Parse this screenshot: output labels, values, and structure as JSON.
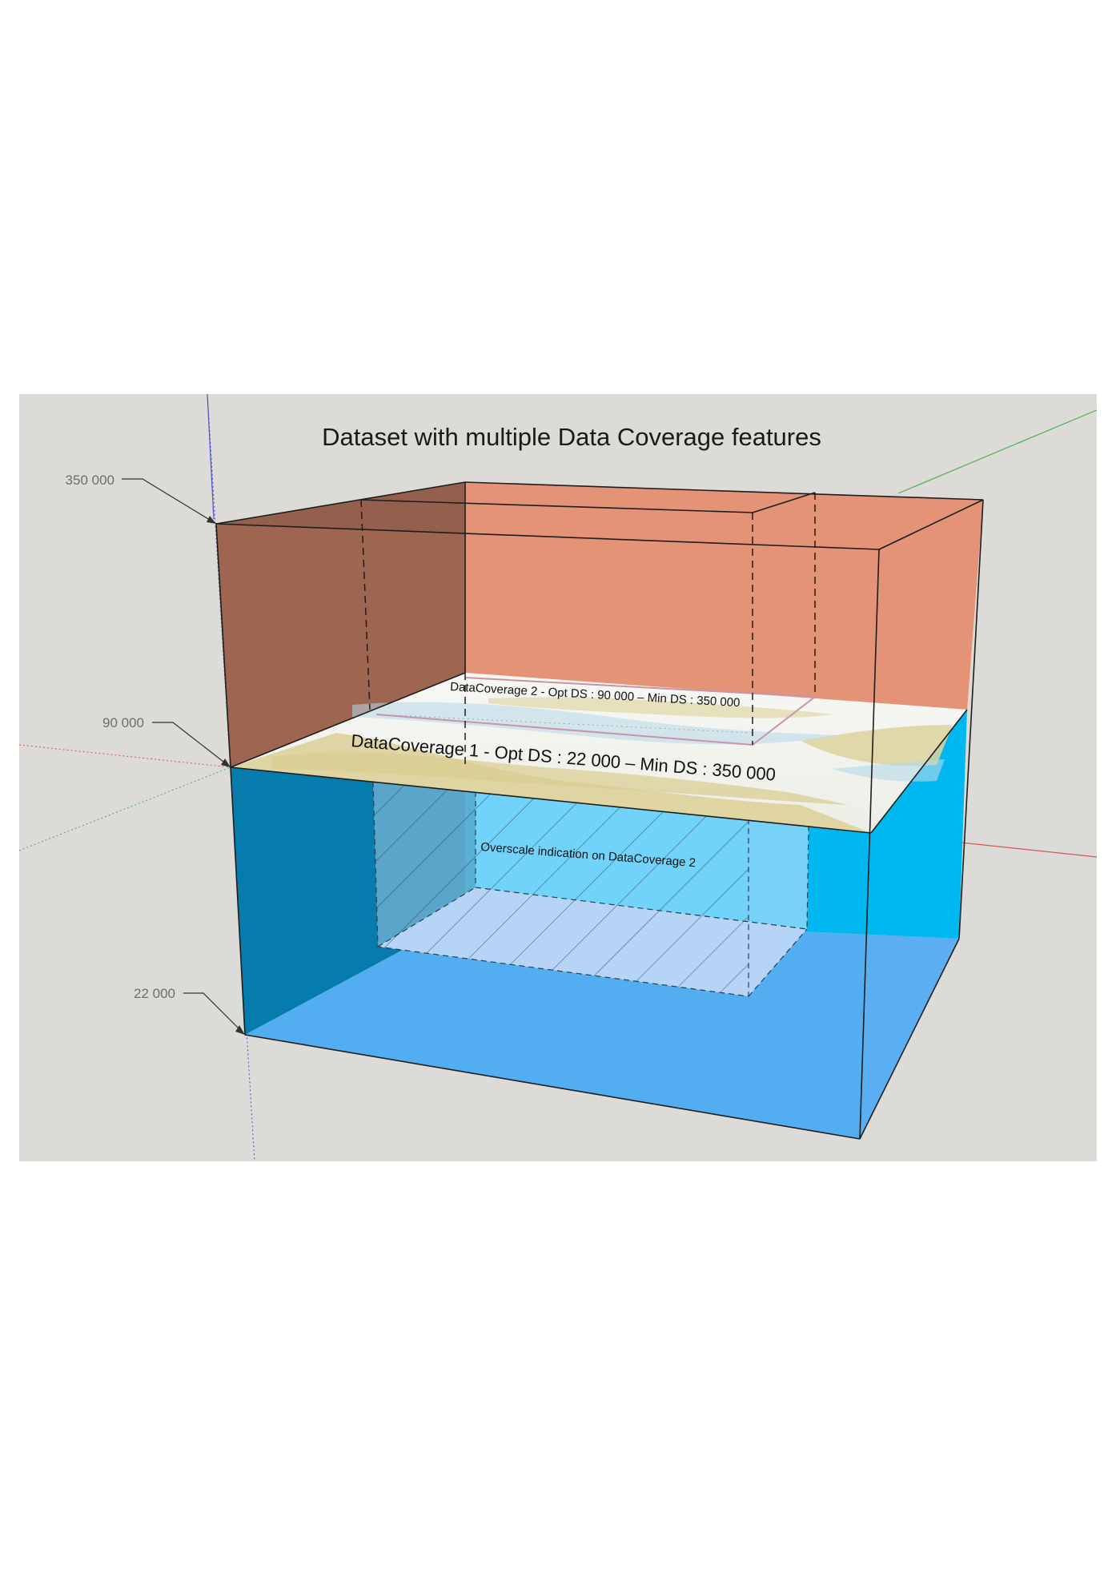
{
  "title": "Dataset with multiple Data Coverage features",
  "scale_ticks": [
    {
      "key": "top",
      "label": "350 000"
    },
    {
      "key": "mid",
      "label": "90 000"
    },
    {
      "key": "bottom",
      "label": "22 000"
    }
  ],
  "labels": {
    "coverage2": "DataCoverage 2 - Opt DS : 90 000 – Min DS : 350 000",
    "coverage1": "DataCoverage 1 - Opt DS : 22 000 – Min DS : 350 000",
    "overscale": "Overscale indication on DataCoverage 2"
  },
  "colors": {
    "background": "#dcdbd7",
    "upper_left_face": "#955f4d",
    "upper_back_face": "#e59377",
    "lower_left_face": "#0678a7",
    "lower_back_face": "#00b8f0",
    "lower_floor": "#5aaef1",
    "chart_paper": "#f2f3ee",
    "chart_land": "#ddd29b",
    "overscale_fill": "#b6d5f6"
  }
}
